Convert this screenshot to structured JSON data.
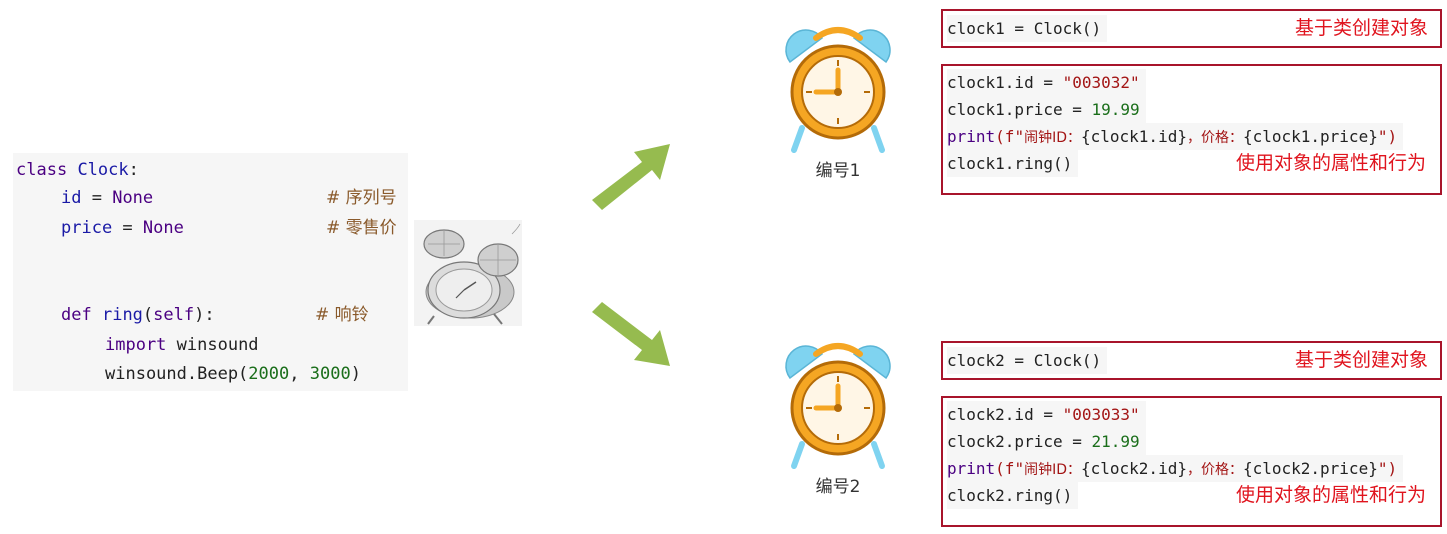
{
  "code": {
    "class_kw": "class",
    "class_name": "Clock",
    "colon": ":",
    "id_attr": "id",
    "price_attr": "price",
    "eq": " = ",
    "none_val": "None",
    "id_comment": "# 序列号",
    "price_comment": "# 零售价",
    "def_kw": "def",
    "method_name": "ring",
    "paren_open": "(",
    "self_kw": "self",
    "paren_close": "):",
    "ring_comment": "# 响铃",
    "import_kw": "import",
    "module": " winsound",
    "beep_call": "winsound.Beep(",
    "beep_arg1": "2000",
    "comma": ", ",
    "beep_arg2": "3000",
    "beep_close": ")"
  },
  "objects": [
    {
      "caption": "编号1",
      "create_code": "clock1 = Clock()",
      "create_note": "基于类创建对象",
      "id_line_prefix": "clock1.id = ",
      "id_value": "\"003032\"",
      "price_line_prefix": "clock1.price = ",
      "price_value": "19.99",
      "print_fn": "print",
      "print_open": "(f\"",
      "print_label_id": "闹钟ID：",
      "print_expr_id": "{clock1.id}",
      "print_label_price": "，价格：",
      "print_expr_price": "{clock1.price}",
      "print_close": "\")",
      "ring_code": "clock1.ring()",
      "use_note": "使用对象的属性和行为"
    },
    {
      "caption": "编号2",
      "create_code": "clock2 = Clock()",
      "create_note": "基于类创建对象",
      "id_line_prefix": "clock2.id = ",
      "id_value": "\"003033\"",
      "price_line_prefix": "clock2.price = ",
      "price_value": "21.99",
      "print_fn": "print",
      "print_open": "(f\"",
      "print_label_id": "闹钟ID：",
      "print_expr_id": "{clock2.id}",
      "print_label_price": "，价格：",
      "print_expr_price": "{clock2.price}",
      "print_close": "\")",
      "ring_code": "clock2.ring()",
      "use_note": "使用对象的属性和行为"
    }
  ],
  "colors": {
    "box_border": "#a8142b",
    "note_red": "#e0141e",
    "arrow_green": "#96bb4f",
    "clock_orange": "#f5a623",
    "clock_blue": "#7fd3f0"
  },
  "icons": [
    "alarm-clock-icon",
    "gray-alarm-clock-model",
    "green-arrow-icon"
  ]
}
